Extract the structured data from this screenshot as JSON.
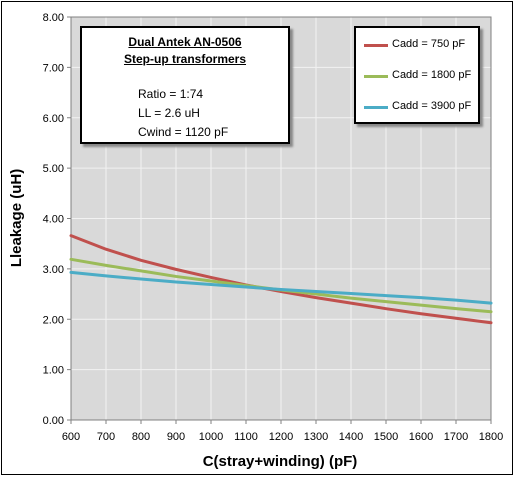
{
  "chart_data": {
    "type": "line",
    "title": "Dual Antek AN-0506",
    "subtitle": "Step-up transformers",
    "annotations": [
      "Ratio = 1:74",
      "LL = 2.6 uH",
      "Cwind = 1120 pF"
    ],
    "xlabel": "C(stray+winding) (pF)",
    "ylabel": "Lleakage (uH)",
    "xlim": [
      600,
      1800
    ],
    "ylim": [
      0,
      8
    ],
    "x_ticks": [
      "600",
      "700",
      "800",
      "900",
      "1000",
      "1100",
      "1200",
      "1300",
      "1400",
      "1500",
      "1600",
      "1700",
      "1800"
    ],
    "y_ticks": [
      "0.00",
      "1.00",
      "2.00",
      "3.00",
      "4.00",
      "5.00",
      "6.00",
      "7.00",
      "8.00"
    ],
    "grid": true,
    "legend_position": "top-right",
    "x": [
      600,
      700,
      800,
      900,
      1000,
      1100,
      1200,
      1300,
      1400,
      1500,
      1600,
      1700,
      1800
    ],
    "series": [
      {
        "name": "Cadd = 750 pF",
        "color": "#c0504d",
        "values": [
          3.66,
          3.39,
          3.17,
          2.99,
          2.83,
          2.68,
          2.55,
          2.43,
          2.32,
          2.21,
          2.11,
          2.02,
          1.93
        ]
      },
      {
        "name": "Cadd = 1800 pF",
        "color": "#9bbb59",
        "values": [
          3.19,
          3.07,
          2.96,
          2.85,
          2.76,
          2.67,
          2.58,
          2.5,
          2.42,
          2.35,
          2.28,
          2.21,
          2.15
        ]
      },
      {
        "name": "Cadd = 3900 pF",
        "color": "#4bacc6",
        "values": [
          2.93,
          2.86,
          2.8,
          2.74,
          2.69,
          2.64,
          2.59,
          2.55,
          2.51,
          2.47,
          2.43,
          2.38,
          2.32
        ]
      }
    ]
  }
}
